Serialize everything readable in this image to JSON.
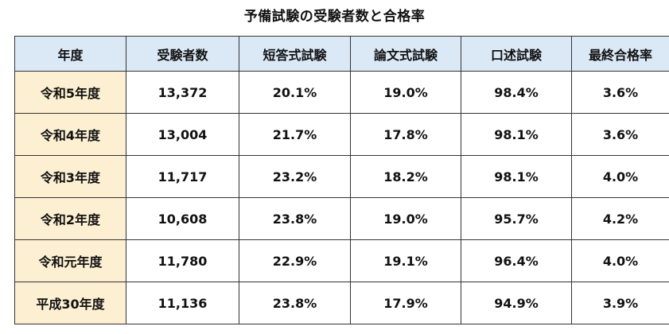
{
  "title": "予備試験の受験者数と合格率",
  "table": {
    "headers": [
      "年度",
      "受験者数",
      "短答式試験",
      "論文式試験",
      "口述試験",
      "最終合格率"
    ],
    "rows": [
      [
        "令和5年度",
        "13,372",
        "20.1%",
        "19.0%",
        "98.4%",
        "3.6%"
      ],
      [
        "令和4年度",
        "13,004",
        "21.7%",
        "17.8%",
        "98.1%",
        "3.6%"
      ],
      [
        "令和3年度",
        "11,717",
        "23.2%",
        "18.2%",
        "98.1%",
        "4.0%"
      ],
      [
        "令和2年度",
        "10,608",
        "23.8%",
        "19.0%",
        "95.7%",
        "4.2%"
      ],
      [
        "令和元年度",
        "11,780",
        "22.9%",
        "19.1%",
        "96.4%",
        "4.0%"
      ],
      [
        "平成30年度",
        "11,136",
        "23.8%",
        "17.9%",
        "94.9%",
        "3.9%"
      ]
    ]
  },
  "colors": {
    "header_bg": "#dbe9f7",
    "year_col_bg": "#fdf0d2",
    "border": "#333333"
  }
}
